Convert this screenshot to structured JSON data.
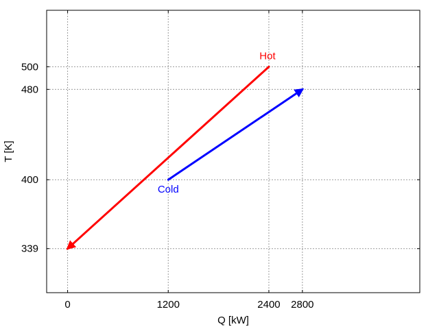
{
  "chart_data": {
    "type": "line",
    "title": "",
    "xlabel": "Q [kW]",
    "ylabel": "T [K]",
    "xlim": [
      -250,
      4200
    ],
    "ylim": [
      300,
      550
    ],
    "grid": true,
    "grid_style": "dotted",
    "xticks": [
      0,
      1200,
      2400,
      2800
    ],
    "xtick_labels": [
      "0",
      "1200",
      "2400",
      "2800"
    ],
    "yticks": [
      339,
      400,
      480,
      500
    ],
    "ytick_labels": [
      "339",
      "400",
      "480",
      "500"
    ],
    "series": [
      {
        "name": "Hot",
        "color": "#ff0000",
        "direction": "arrow toward start point",
        "x": [
          2400,
          0
        ],
        "y": [
          500,
          339
        ]
      },
      {
        "name": "Cold",
        "color": "#0000ff",
        "direction": "arrow toward end point",
        "x": [
          1200,
          2800
        ],
        "y": [
          400,
          480
        ]
      }
    ]
  }
}
